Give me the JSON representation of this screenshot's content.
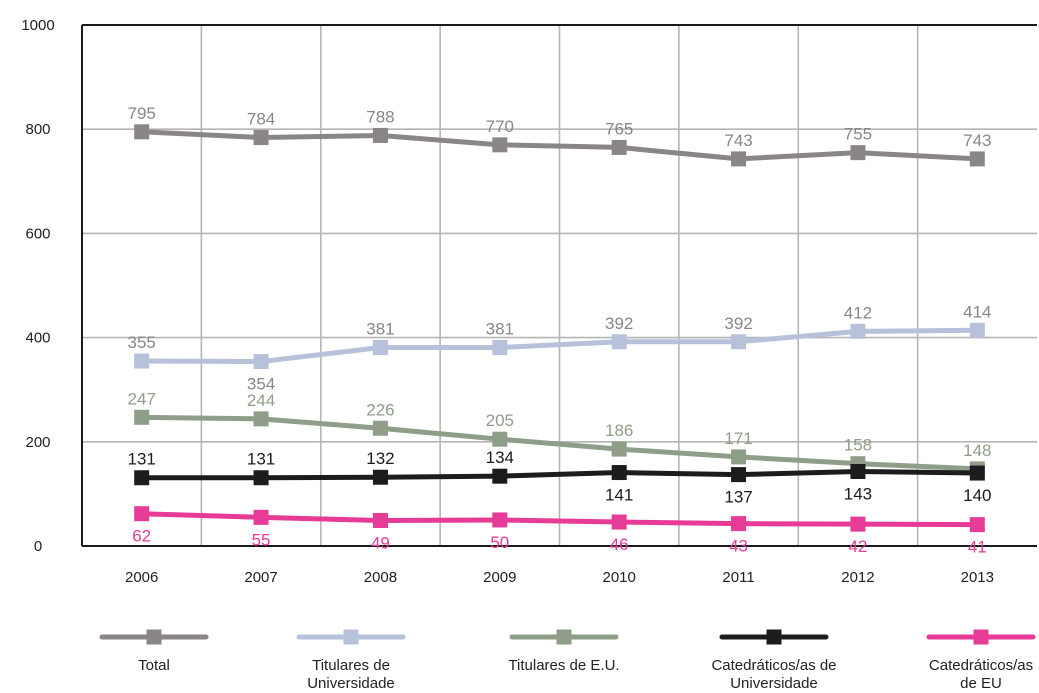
{
  "chart_data": {
    "type": "line",
    "title": "",
    "xlabel": "",
    "ylabel": "",
    "x": [
      "2006",
      "2007",
      "2008",
      "2009",
      "2010",
      "2011",
      "2012",
      "2013"
    ],
    "ylim": [
      0,
      1000
    ],
    "yticks": [
      "0",
      "200",
      "400",
      "600",
      "800",
      "1000"
    ],
    "grid": true,
    "legend_position": "bottom",
    "series": [
      {
        "name": "Total",
        "color": "#8a8686",
        "values": [
          795,
          784,
          788,
          770,
          765,
          743,
          755,
          743
        ],
        "label_color": "#8a8686"
      },
      {
        "name": "Titulares de Universidade",
        "color": "#b7c1da",
        "values": [
          355,
          354,
          381,
          381,
          392,
          392,
          412,
          414
        ],
        "label_color": "#8a8686"
      },
      {
        "name": "Titulares de E.U.",
        "color": "#8f9e89",
        "values": [
          247,
          244,
          226,
          205,
          186,
          171,
          158,
          148
        ],
        "label_color": "#8f9e89"
      },
      {
        "name": "Catedráticos/as de Universidade",
        "color": "#1c1c1c",
        "values": [
          131,
          131,
          132,
          134,
          141,
          137,
          143,
          140
        ],
        "label_color": "#1c1c1c"
      },
      {
        "name": "Catedráticos/as de EU",
        "color": "#e63b97",
        "values": [
          62,
          55,
          49,
          50,
          46,
          43,
          42,
          41
        ],
        "label_color": "#e63b97"
      }
    ],
    "legend_labels": [
      [
        "Total"
      ],
      [
        "Titulares de",
        "Universidade"
      ],
      [
        "Titulares de E.U."
      ],
      [
        "Catedráticos/as de",
        "Universidade"
      ],
      [
        "Catedráticos/as",
        "de EU"
      ]
    ]
  }
}
